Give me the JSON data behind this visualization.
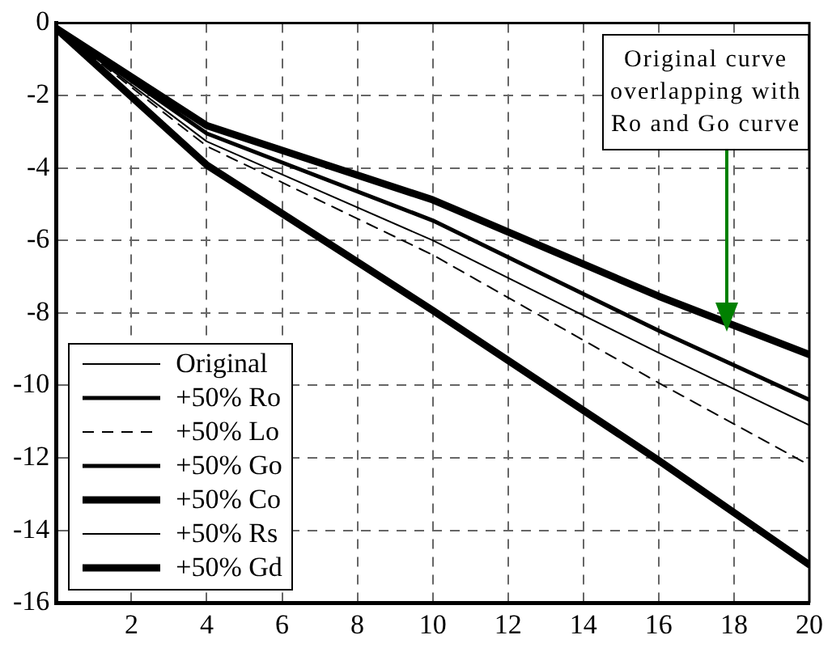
{
  "chart_data": {
    "type": "line",
    "x": [
      0,
      4,
      10,
      16,
      20
    ],
    "series": [
      {
        "name": "Original",
        "color": "#000000",
        "values": [
          null,
          null,
          null,
          null,
          null
        ]
      },
      {
        "name": "+50% Ro",
        "color": "#000000",
        "values": [
          -0.15,
          -3.05,
          -5.45,
          -8.49,
          -10.4
        ]
      },
      {
        "name": "+50% Lo",
        "color": "#000000",
        "line_style": "dashed",
        "values": [
          -0.15,
          -3.4,
          -6.4,
          -9.93,
          -12.2
        ]
      },
      {
        "name": "+50% Go",
        "color": "#000000",
        "values": [
          null,
          null,
          null,
          null,
          null
        ]
      },
      {
        "name": "+50% Co",
        "color": "#000000",
        "values": [
          -0.15,
          -2.83,
          -4.88,
          -7.54,
          -9.15
        ]
      },
      {
        "name": "+50% Rs",
        "color": "#000000",
        "values": [
          -0.15,
          -3.27,
          -6.0,
          -9.1,
          -11.1
        ]
      },
      {
        "name": "+50% Gd",
        "color": "#000000",
        "values": [
          -0.15,
          -3.92,
          -7.93,
          -12.07,
          -14.95
        ]
      }
    ],
    "xlim": [
      0,
      20
    ],
    "xticks": [
      2,
      4,
      6,
      8,
      10,
      12,
      14,
      16,
      18,
      20
    ],
    "ylim": [
      -16,
      0
    ],
    "yticks": [
      0,
      -2,
      -4,
      -6,
      -8,
      -10,
      -12,
      -14,
      -16
    ],
    "grid": true,
    "legend": "bottom left",
    "line_style": "solid",
    "marker": "none",
    "annotations": [
      "Original curve\noverlapping with\nRo and Go curve"
    ]
  }
}
